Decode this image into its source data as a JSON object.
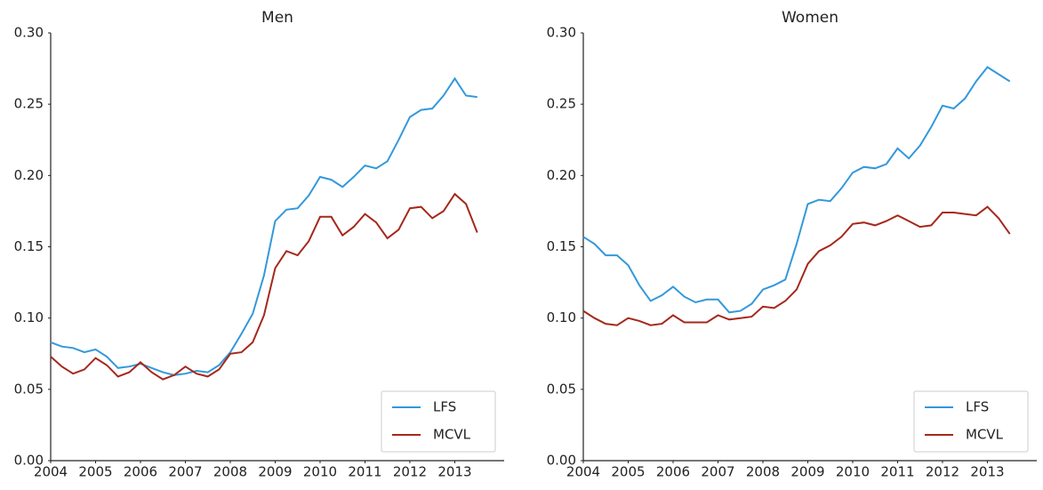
{
  "chart_data": [
    {
      "type": "line",
      "title": "Men",
      "x": [
        2004,
        2004.25,
        2004.5,
        2004.75,
        2005,
        2005.25,
        2005.5,
        2005.75,
        2006,
        2006.25,
        2006.5,
        2006.75,
        2007,
        2007.25,
        2007.5,
        2007.75,
        2008,
        2008.25,
        2008.5,
        2008.75,
        2009,
        2009.25,
        2009.5,
        2009.75,
        2010,
        2010.25,
        2010.5,
        2010.75,
        2011,
        2011.25,
        2011.5,
        2011.75,
        2012,
        2012.25,
        2012.5,
        2012.75,
        2013,
        2013.25,
        2013.5
      ],
      "series": [
        {
          "name": "LFS",
          "color": "#3498db",
          "values": [
            0.083,
            0.08,
            0.079,
            0.076,
            0.078,
            0.073,
            0.065,
            0.066,
            0.068,
            0.065,
            0.062,
            0.06,
            0.061,
            0.063,
            0.062,
            0.067,
            0.076,
            0.089,
            0.103,
            0.13,
            0.168,
            0.176,
            0.177,
            0.186,
            0.199,
            0.197,
            0.192,
            0.199,
            0.207,
            0.205,
            0.21,
            0.225,
            0.241,
            0.246,
            0.247,
            0.256,
            0.268,
            0.256,
            0.255
          ]
        },
        {
          "name": "MCVL",
          "color": "#a5281b",
          "values": [
            0.073,
            0.066,
            0.061,
            0.064,
            0.072,
            0.067,
            0.059,
            0.062,
            0.069,
            0.062,
            0.057,
            0.06,
            0.066,
            0.061,
            0.059,
            0.064,
            0.075,
            0.076,
            0.083,
            0.102,
            0.135,
            0.147,
            0.144,
            0.154,
            0.171,
            0.171,
            0.158,
            0.164,
            0.173,
            0.167,
            0.156,
            0.162,
            0.177,
            0.178,
            0.17,
            0.175,
            0.187,
            0.18,
            0.16
          ]
        }
      ],
      "xlim": [
        2004,
        2014.1
      ],
      "ylim": [
        0,
        0.3
      ],
      "xticks": [
        2004,
        2005,
        2006,
        2007,
        2008,
        2009,
        2010,
        2011,
        2012,
        2013
      ],
      "yticks": [
        {
          "value": 0,
          "label": "0.00"
        },
        {
          "value": 0.05,
          "label": "0.05"
        },
        {
          "value": 0.1,
          "label": "0.10"
        },
        {
          "value": 0.15,
          "label": "0.15"
        },
        {
          "value": 0.2,
          "label": "0.20"
        },
        {
          "value": 0.25,
          "label": "0.25"
        },
        {
          "value": 0.3,
          "label": "0.30"
        }
      ],
      "legend": "lower right"
    },
    {
      "type": "line",
      "title": "Women",
      "x": [
        2004,
        2004.25,
        2004.5,
        2004.75,
        2005,
        2005.25,
        2005.5,
        2005.75,
        2006,
        2006.25,
        2006.5,
        2006.75,
        2007,
        2007.25,
        2007.5,
        2007.75,
        2008,
        2008.25,
        2008.5,
        2008.75,
        2009,
        2009.25,
        2009.5,
        2009.75,
        2010,
        2010.25,
        2010.5,
        2010.75,
        2011,
        2011.25,
        2011.5,
        2011.75,
        2012,
        2012.25,
        2012.5,
        2012.75,
        2013,
        2013.25,
        2013.5
      ],
      "series": [
        {
          "name": "LFS",
          "color": "#3498db",
          "values": [
            0.157,
            0.152,
            0.144,
            0.144,
            0.137,
            0.123,
            0.112,
            0.116,
            0.122,
            0.115,
            0.111,
            0.113,
            0.113,
            0.104,
            0.105,
            0.11,
            0.12,
            0.123,
            0.127,
            0.152,
            0.18,
            0.183,
            0.182,
            0.191,
            0.202,
            0.206,
            0.205,
            0.208,
            0.219,
            0.212,
            0.221,
            0.234,
            0.249,
            0.247,
            0.254,
            0.266,
            0.276,
            0.271,
            0.266
          ]
        },
        {
          "name": "MCVL",
          "color": "#a5281b",
          "values": [
            0.105,
            0.1,
            0.096,
            0.095,
            0.1,
            0.098,
            0.095,
            0.096,
            0.102,
            0.097,
            0.097,
            0.097,
            0.102,
            0.099,
            0.1,
            0.101,
            0.108,
            0.107,
            0.112,
            0.12,
            0.138,
            0.147,
            0.151,
            0.157,
            0.166,
            0.167,
            0.165,
            0.168,
            0.172,
            0.168,
            0.164,
            0.165,
            0.174,
            0.174,
            0.173,
            0.172,
            0.178,
            0.17,
            0.159
          ]
        }
      ],
      "xlim": [
        2004,
        2014.1
      ],
      "ylim": [
        0,
        0.3
      ],
      "xticks": [
        2004,
        2005,
        2006,
        2007,
        2008,
        2009,
        2010,
        2011,
        2012,
        2013
      ],
      "yticks": [
        {
          "value": 0,
          "label": "0.00"
        },
        {
          "value": 0.05,
          "label": "0.05"
        },
        {
          "value": 0.1,
          "label": "0.10"
        },
        {
          "value": 0.15,
          "label": "0.15"
        },
        {
          "value": 0.2,
          "label": "0.20"
        },
        {
          "value": 0.25,
          "label": "0.25"
        },
        {
          "value": 0.3,
          "label": "0.30"
        }
      ],
      "legend": "lower right"
    }
  ]
}
